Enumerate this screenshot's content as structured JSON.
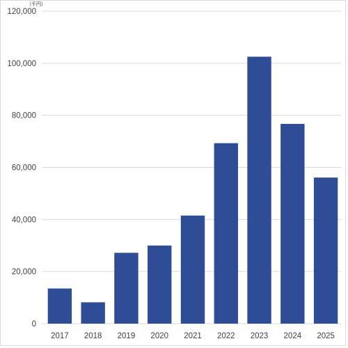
{
  "chart_data": {
    "type": "bar",
    "unit": "（千円）",
    "categories": [
      "2017",
      "2018",
      "2019",
      "2020",
      "2021",
      "2022",
      "2023",
      "2024",
      "2025"
    ],
    "values": [
      13500,
      8200,
      27200,
      30000,
      41500,
      69300,
      102500,
      76700,
      56100
    ],
    "ylim": [
      0,
      120000
    ],
    "yticks": [
      "0",
      "20,000",
      "40,000",
      "60,000",
      "80,000",
      "100,000",
      "120,000"
    ],
    "ytick_values": [
      0,
      20000,
      40000,
      60000,
      80000,
      100000,
      120000
    ],
    "grid": true,
    "legend": "none",
    "bar_color": "#2f4d97",
    "grid_color": "#d9d9d9",
    "text_color": "#404040"
  }
}
